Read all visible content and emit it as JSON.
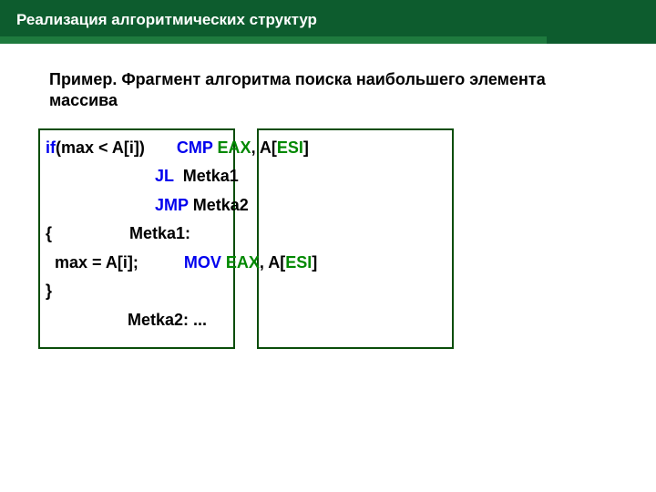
{
  "header": {
    "title": "Реализация алгоритмических структур"
  },
  "subtitle": "Пример. Фрагмент алгоритма поиска наибольшего элемента массива",
  "colors": {
    "header_bg": "#0d5c2e",
    "header_border": "#1e7a3e",
    "box_border": "#0a4d0a",
    "keyword": "#0000ee",
    "register": "#008800",
    "text": "#000000"
  },
  "code": {
    "line1": {
      "kw": "if",
      "rest": "(max < A[i])       ",
      "instr": "CMP ",
      "reg": "EAX",
      "tail1": ", A[",
      "esi": "ESI",
      "tail2": "]"
    },
    "line2": {
      "pad": "                        ",
      "kw": "JL  ",
      "rest": "Metka1"
    },
    "line3": {
      "pad": "                        ",
      "kw": "JMP ",
      "rest": "Metka2"
    },
    "line4": "{                 Metka1: ",
    "line5": {
      "pre": "  max = A[i];          ",
      "instr": "MOV ",
      "reg": "EAX",
      "t1": ", A[",
      "esi": "ESI",
      "t2": "]"
    },
    "line6": "}  ",
    "line7": "                  Metka2: ..."
  }
}
